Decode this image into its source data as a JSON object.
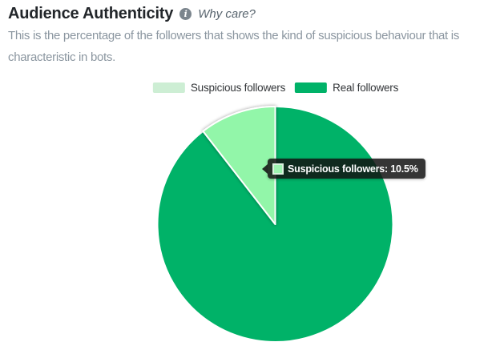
{
  "header": {
    "title": "Audience Authenticity",
    "info_icon": "i",
    "why_care": "Why care?"
  },
  "description": "This is the percentage of the followers that shows the kind of suspicious behaviour that is characteristic in bots.",
  "chart_data": {
    "type": "pie",
    "title": "Audience Authenticity",
    "unit": "%",
    "legend_position": "top",
    "start_angle_deg": -37.8,
    "hovered_slice": 0,
    "slices": [
      {
        "label": "Suspicious followers",
        "value": 10.5,
        "color": "#92f6a9",
        "legend_color": "#cdeed4"
      },
      {
        "label": "Real followers",
        "value": 89.5,
        "color": "#00b268",
        "legend_color": "#00b268"
      }
    ],
    "tooltip": {
      "text": "Suspicious followers: 10.5%",
      "swatch_color": "#9ef3b0",
      "swatch_border": "#d9f2de",
      "background": "#121212"
    }
  }
}
